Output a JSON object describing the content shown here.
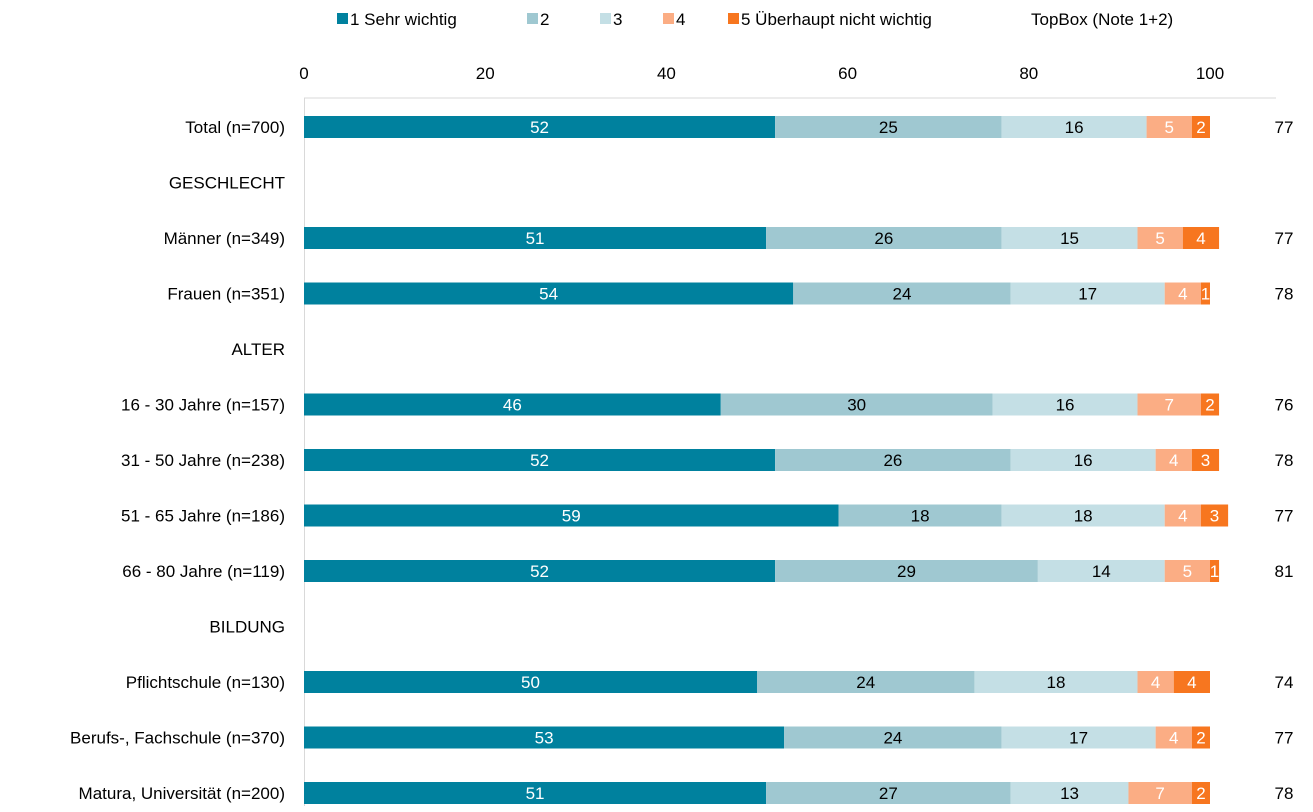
{
  "chart_data": {
    "type": "bar",
    "orientation": "horizontal",
    "stacked": true,
    "xlim": [
      0,
      100
    ],
    "x_ticks": [
      "0",
      "20",
      "40",
      "60",
      "80",
      "100"
    ],
    "legend_position": "top",
    "legend": [
      {
        "name": "1 Sehr wichtig",
        "color": "#00819e"
      },
      {
        "name": "2",
        "color": "#9fc8d1"
      },
      {
        "name": "3",
        "color": "#c4dfe5"
      },
      {
        "name": "4",
        "color": "#fbad84"
      },
      {
        "name": "5 Überhaupt nicht wichtig",
        "color": "#f7761f"
      },
      {
        "name": "TopBox (Note 1+2)",
        "color": ""
      }
    ],
    "rows": [
      {
        "label": "Total (n=700)",
        "values": [
          52,
          25,
          16,
          5,
          2
        ],
        "topbox": "77"
      },
      {
        "label": "GESCHLECHT",
        "header": true
      },
      {
        "label": "Männer (n=349)",
        "values": [
          51,
          26,
          15,
          5,
          4
        ],
        "topbox": "77"
      },
      {
        "label": "Frauen (n=351)",
        "values": [
          54,
          24,
          17,
          4,
          1
        ],
        "topbox": "78"
      },
      {
        "label": "ALTER",
        "header": true
      },
      {
        "label": "16 - 30 Jahre (n=157)",
        "values": [
          46,
          30,
          16,
          7,
          2
        ],
        "topbox": "76"
      },
      {
        "label": "31 - 50 Jahre (n=238)",
        "values": [
          52,
          26,
          16,
          4,
          3
        ],
        "topbox": "78"
      },
      {
        "label": "51 - 65 Jahre (n=186)",
        "values": [
          59,
          18,
          18,
          4,
          3
        ],
        "topbox": "77"
      },
      {
        "label": "66 - 80 Jahre (n=119)",
        "values": [
          52,
          29,
          14,
          5,
          1
        ],
        "topbox": "81"
      },
      {
        "label": "BILDUNG",
        "header": true
      },
      {
        "label": "Pflichtschule (n=130)",
        "values": [
          50,
          24,
          18,
          4,
          4
        ],
        "topbox": "74"
      },
      {
        "label": "Berufs-, Fachschule (n=370)",
        "values": [
          53,
          24,
          17,
          4,
          2
        ],
        "topbox": "77"
      },
      {
        "label": "Matura, Universität (n=200)",
        "values": [
          51,
          27,
          13,
          7,
          2
        ],
        "topbox": "78"
      }
    ]
  }
}
